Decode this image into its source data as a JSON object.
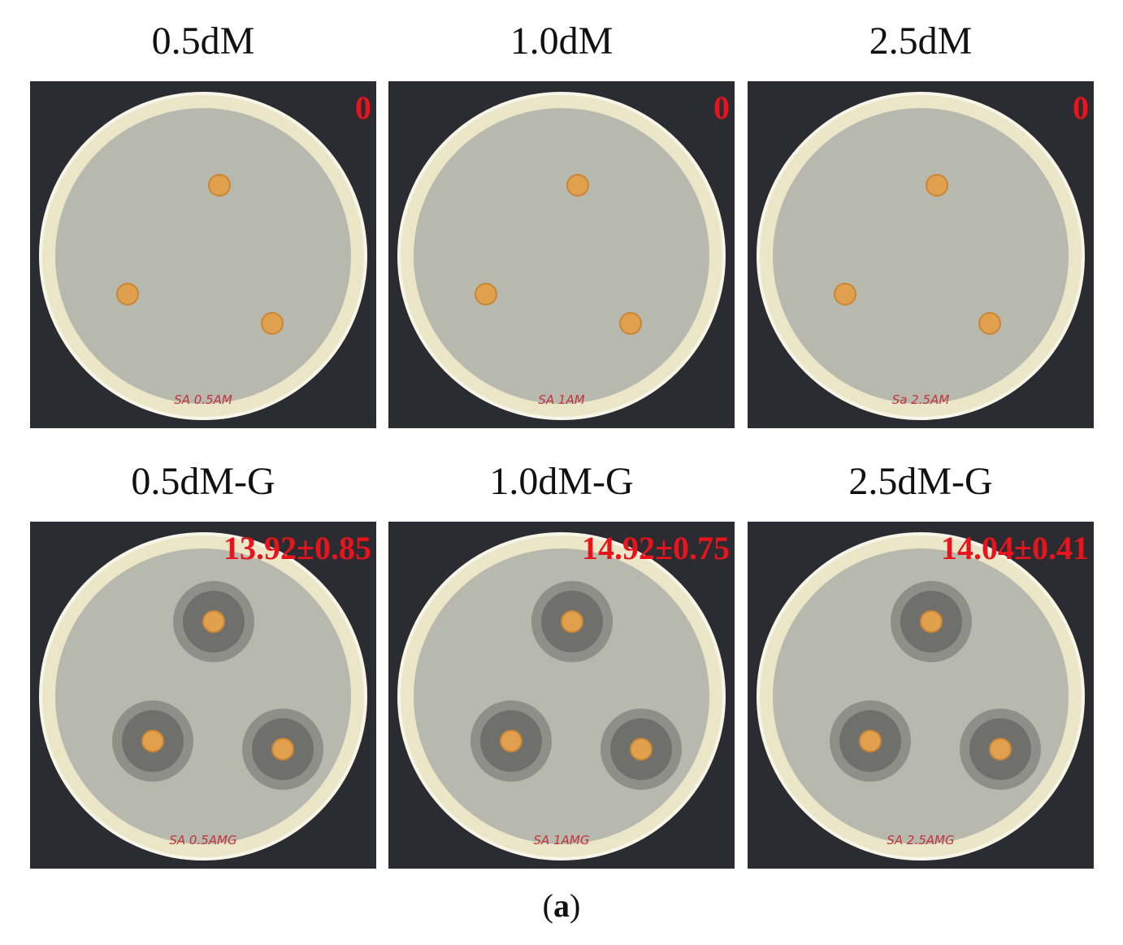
{
  "panels": [
    {
      "title": "0.5dM",
      "zone": "0",
      "plate_label": "SA 0.5AM"
    },
    {
      "title": "1.0dM",
      "zone": "0",
      "plate_label": "SA 1AM"
    },
    {
      "title": "2.5dM",
      "zone": "0",
      "plate_label": "Sa 2.5AM"
    },
    {
      "title": "0.5dM-G",
      "zone": "13.92±0.85",
      "plate_label": "SA 0.5AMG"
    },
    {
      "title": "1.0dM-G",
      "zone": "14.92±0.75",
      "plate_label": "SA 1AMG"
    },
    {
      "title": "2.5dM-G",
      "zone": "14.04±0.41",
      "plate_label": "SA 2.5AMG"
    }
  ],
  "caption": {
    "open": "(",
    "letter": "a",
    "close": ")"
  }
}
